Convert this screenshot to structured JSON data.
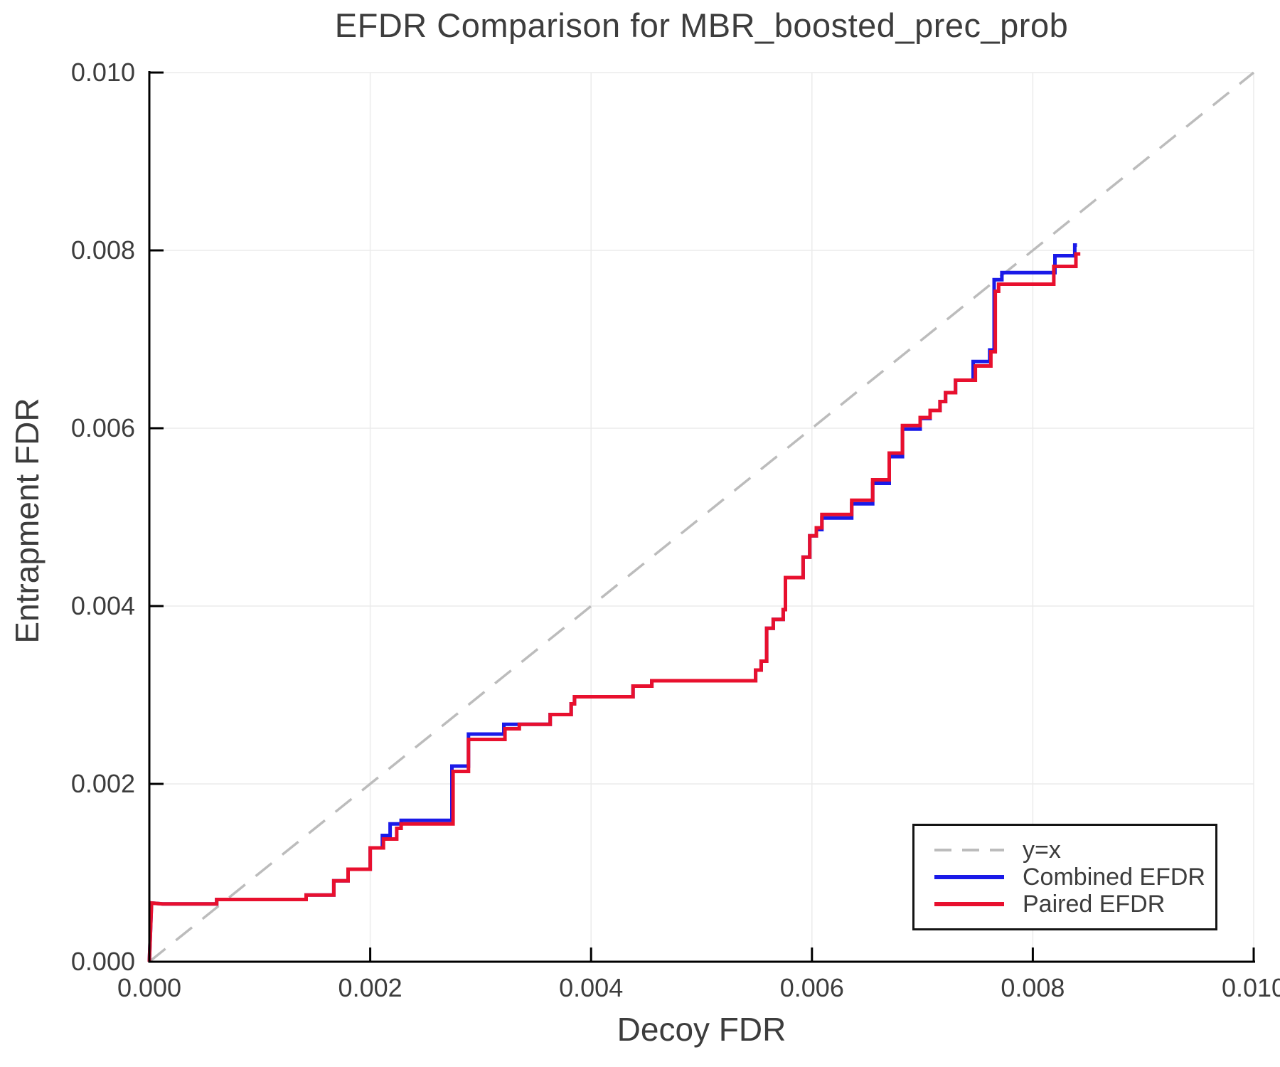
{
  "title": "EFDR Comparison for MBR_boosted_prec_prob",
  "chart_data": {
    "type": "line",
    "title": "EFDR Comparison for MBR_boosted_prec_prob",
    "xlabel": "Decoy FDR",
    "ylabel": "Entrapment FDR",
    "xlim": [
      0,
      0.01
    ],
    "ylim": [
      0,
      0.01
    ],
    "xticks": [
      0,
      0.002,
      0.004,
      0.006,
      0.008,
      0.01
    ],
    "yticks": [
      0,
      0.002,
      0.004,
      0.006,
      0.008,
      0.01
    ],
    "xtick_labels": [
      "0.000",
      "0.002",
      "0.004",
      "0.006",
      "0.008",
      "0.010"
    ],
    "ytick_labels": [
      "0.000",
      "0.002",
      "0.004",
      "0.006",
      "0.008",
      "0.010"
    ],
    "grid": true,
    "grid_color": "#ebebeb",
    "axis_color": "#000000",
    "text_color": "#3d3d3d",
    "legend_position": "lower right",
    "series": [
      {
        "name": "y=x",
        "color": "#bcbcbc",
        "dashed": true,
        "width": 3.5,
        "points": [
          [
            0,
            0
          ],
          [
            0.01,
            0.01
          ]
        ]
      },
      {
        "name": "Combined EFDR",
        "color": "#1a1ae8",
        "dashed": false,
        "width": 5,
        "points": [
          [
            0,
            0
          ],
          [
            2e-05,
            0.00066
          ],
          [
            0.00012,
            0.00065
          ],
          [
            0.00061,
            0.00065
          ],
          [
            0.00061,
            0.0007
          ],
          [
            0.00142,
            0.0007
          ],
          [
            0.00142,
            0.00075
          ],
          [
            0.00167,
            0.00075
          ],
          [
            0.00167,
            0.00091
          ],
          [
            0.0018,
            0.00091
          ],
          [
            0.0018,
            0.00104
          ],
          [
            0.002,
            0.00104
          ],
          [
            0.002,
            0.00128
          ],
          [
            0.00211,
            0.00128
          ],
          [
            0.00211,
            0.00142
          ],
          [
            0.00218,
            0.00142
          ],
          [
            0.00218,
            0.00155
          ],
          [
            0.00228,
            0.00155
          ],
          [
            0.00228,
            0.00159
          ],
          [
            0.00274,
            0.00159
          ],
          [
            0.00274,
            0.0022
          ],
          [
            0.00289,
            0.0022
          ],
          [
            0.00289,
            0.00256
          ],
          [
            0.00321,
            0.00256
          ],
          [
            0.00321,
            0.00267
          ],
          [
            0.00363,
            0.00267
          ],
          [
            0.00363,
            0.00278
          ],
          [
            0.00382,
            0.00278
          ],
          [
            0.00382,
            0.0029
          ],
          [
            0.00385,
            0.0029
          ],
          [
            0.00385,
            0.00298
          ],
          [
            0.00438,
            0.00298
          ],
          [
            0.00438,
            0.0031
          ],
          [
            0.00455,
            0.0031
          ],
          [
            0.00455,
            0.00316
          ],
          [
            0.00549,
            0.00316
          ],
          [
            0.00549,
            0.00328
          ],
          [
            0.00554,
            0.00328
          ],
          [
            0.00554,
            0.00338
          ],
          [
            0.00559,
            0.00338
          ],
          [
            0.00559,
            0.00375
          ],
          [
            0.00565,
            0.00375
          ],
          [
            0.00565,
            0.00385
          ],
          [
            0.00574,
            0.00385
          ],
          [
            0.00574,
            0.00396
          ],
          [
            0.00576,
            0.00396
          ],
          [
            0.00576,
            0.00432
          ],
          [
            0.00592,
            0.00432
          ],
          [
            0.00592,
            0.00455
          ],
          [
            0.00598,
            0.00455
          ],
          [
            0.00598,
            0.00479
          ],
          [
            0.00604,
            0.00479
          ],
          [
            0.00604,
            0.00486
          ],
          [
            0.00609,
            0.00486
          ],
          [
            0.00609,
            0.00499
          ],
          [
            0.00636,
            0.00499
          ],
          [
            0.00636,
            0.00515
          ],
          [
            0.00655,
            0.00515
          ],
          [
            0.00655,
            0.00538
          ],
          [
            0.0067,
            0.00538
          ],
          [
            0.0067,
            0.00568
          ],
          [
            0.00682,
            0.00568
          ],
          [
            0.00682,
            0.00599
          ],
          [
            0.00698,
            0.00599
          ],
          [
            0.00698,
            0.00611
          ],
          [
            0.00707,
            0.00611
          ],
          [
            0.00707,
            0.0062
          ],
          [
            0.00716,
            0.0062
          ],
          [
            0.00716,
            0.0063
          ],
          [
            0.00721,
            0.0063
          ],
          [
            0.00721,
            0.0064
          ],
          [
            0.0073,
            0.0064
          ],
          [
            0.0073,
            0.00654
          ],
          [
            0.00746,
            0.00654
          ],
          [
            0.00746,
            0.00675
          ],
          [
            0.00761,
            0.00675
          ],
          [
            0.00761,
            0.00688
          ],
          [
            0.00765,
            0.00688
          ],
          [
            0.00765,
            0.00767
          ],
          [
            0.00772,
            0.00767
          ],
          [
            0.00772,
            0.00775
          ],
          [
            0.0082,
            0.00775
          ],
          [
            0.0082,
            0.00794
          ],
          [
            0.00838,
            0.00794
          ],
          [
            0.00838,
            0.00806
          ],
          [
            0.0084,
            0.00806
          ]
        ]
      },
      {
        "name": "Paired EFDR",
        "color": "#e8102e",
        "dashed": false,
        "width": 5,
        "points": [
          [
            0,
            0
          ],
          [
            2e-05,
            0.00066
          ],
          [
            0.00012,
            0.00065
          ],
          [
            0.00061,
            0.00065
          ],
          [
            0.00061,
            0.0007
          ],
          [
            0.00142,
            0.0007
          ],
          [
            0.00142,
            0.00075
          ],
          [
            0.00167,
            0.00075
          ],
          [
            0.00167,
            0.00091
          ],
          [
            0.0018,
            0.00091
          ],
          [
            0.0018,
            0.00104
          ],
          [
            0.002,
            0.00104
          ],
          [
            0.002,
            0.00128
          ],
          [
            0.00212,
            0.00128
          ],
          [
            0.00212,
            0.00138
          ],
          [
            0.00224,
            0.00138
          ],
          [
            0.00224,
            0.0015
          ],
          [
            0.00228,
            0.0015
          ],
          [
            0.00228,
            0.00155
          ],
          [
            0.00275,
            0.00155
          ],
          [
            0.00275,
            0.00214
          ],
          [
            0.00289,
            0.00214
          ],
          [
            0.00289,
            0.0025
          ],
          [
            0.00322,
            0.0025
          ],
          [
            0.00322,
            0.00262
          ],
          [
            0.00335,
            0.00262
          ],
          [
            0.00335,
            0.00267
          ],
          [
            0.00363,
            0.00267
          ],
          [
            0.00363,
            0.00278
          ],
          [
            0.00382,
            0.00278
          ],
          [
            0.00382,
            0.0029
          ],
          [
            0.00385,
            0.0029
          ],
          [
            0.00385,
            0.00298
          ],
          [
            0.00438,
            0.00298
          ],
          [
            0.00438,
            0.0031
          ],
          [
            0.00455,
            0.0031
          ],
          [
            0.00455,
            0.00316
          ],
          [
            0.00549,
            0.00316
          ],
          [
            0.00549,
            0.00328
          ],
          [
            0.00554,
            0.00328
          ],
          [
            0.00554,
            0.00338
          ],
          [
            0.00559,
            0.00338
          ],
          [
            0.00559,
            0.00375
          ],
          [
            0.00565,
            0.00375
          ],
          [
            0.00565,
            0.00385
          ],
          [
            0.00574,
            0.00385
          ],
          [
            0.00574,
            0.00396
          ],
          [
            0.00576,
            0.00396
          ],
          [
            0.00576,
            0.00432
          ],
          [
            0.00592,
            0.00432
          ],
          [
            0.00592,
            0.00455
          ],
          [
            0.00598,
            0.00455
          ],
          [
            0.00598,
            0.00479
          ],
          [
            0.00604,
            0.00479
          ],
          [
            0.00604,
            0.00488
          ],
          [
            0.00609,
            0.00488
          ],
          [
            0.00609,
            0.00503
          ],
          [
            0.00636,
            0.00503
          ],
          [
            0.00636,
            0.00519
          ],
          [
            0.00655,
            0.00519
          ],
          [
            0.00655,
            0.00542
          ],
          [
            0.0067,
            0.00542
          ],
          [
            0.0067,
            0.00572
          ],
          [
            0.00682,
            0.00572
          ],
          [
            0.00682,
            0.00603
          ],
          [
            0.00698,
            0.00603
          ],
          [
            0.00698,
            0.00612
          ],
          [
            0.00707,
            0.00612
          ],
          [
            0.00707,
            0.0062
          ],
          [
            0.00716,
            0.0062
          ],
          [
            0.00716,
            0.0063
          ],
          [
            0.00721,
            0.0063
          ],
          [
            0.00721,
            0.0064
          ],
          [
            0.0073,
            0.0064
          ],
          [
            0.0073,
            0.00654
          ],
          [
            0.00748,
            0.00654
          ],
          [
            0.00748,
            0.0067
          ],
          [
            0.00762,
            0.0067
          ],
          [
            0.00762,
            0.00686
          ],
          [
            0.00766,
            0.00686
          ],
          [
            0.00766,
            0.00754
          ],
          [
            0.00769,
            0.00754
          ],
          [
            0.00769,
            0.00762
          ],
          [
            0.00819,
            0.00762
          ],
          [
            0.00819,
            0.00782
          ],
          [
            0.00839,
            0.00782
          ],
          [
            0.00839,
            0.00796
          ],
          [
            0.00843,
            0.00796
          ]
        ]
      }
    ]
  },
  "legend": {
    "entries": [
      {
        "label": "y=x"
      },
      {
        "label": "Combined EFDR"
      },
      {
        "label": "Paired EFDR"
      }
    ]
  }
}
